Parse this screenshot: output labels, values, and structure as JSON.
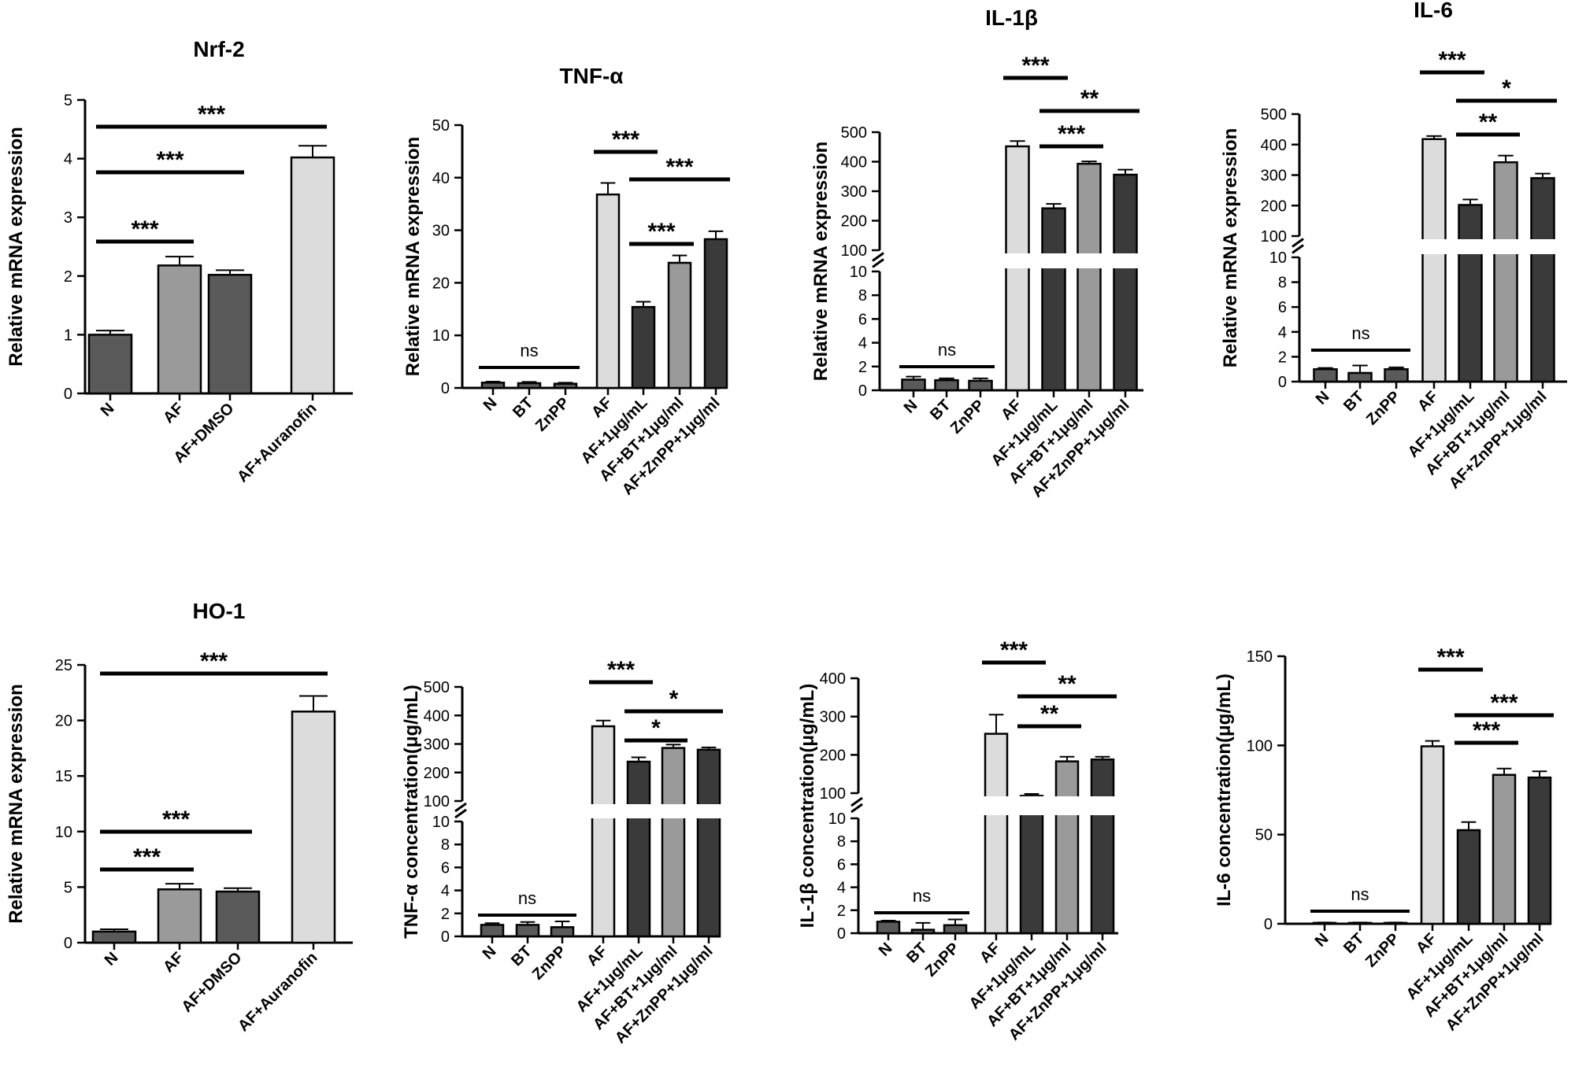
{
  "colors": {
    "dark": "#5a5a5a",
    "medium": "#9a9a9a",
    "light": "#dcdcdc",
    "black": "#3a3a3a",
    "axis": "#000000"
  },
  "chart_data": [
    {
      "type": "bar",
      "title": "Nrf-2",
      "ylabel": "Relative mRNA expression",
      "categories": [
        "N",
        "AF",
        "AF+DMSO",
        "AF+Auranofin"
      ],
      "values": [
        1.0,
        2.18,
        2.02,
        4.02
      ],
      "errors": [
        0.07,
        0.15,
        0.08,
        0.2
      ],
      "colors": [
        "dark",
        "medium",
        "dark",
        "light"
      ],
      "ylim": [
        0,
        5
      ],
      "yticks": [
        0,
        1,
        2,
        3,
        4,
        5
      ],
      "significance": [
        {
          "from": 0,
          "to": 1,
          "label": "***"
        },
        {
          "from": 0,
          "to": 2,
          "label": "***"
        },
        {
          "from": 0,
          "to": 3,
          "label": "***"
        }
      ]
    },
    {
      "type": "bar",
      "title": "TNF-α",
      "ylabel": "Relative mRNA expression",
      "categories": [
        "N",
        "BT",
        "ZnPP",
        "AF",
        "AF+1μg/mL",
        "AF+BT+1μg/ml",
        "AF+ZnPP+1μg/ml"
      ],
      "values": [
        1.0,
        0.9,
        0.8,
        36.8,
        15.4,
        23.8,
        28.3
      ],
      "errors": [
        0.2,
        0.25,
        0.2,
        2.2,
        1.0,
        1.4,
        1.5
      ],
      "colors": [
        "dark",
        "dark",
        "dark",
        "light",
        "black",
        "medium",
        "black"
      ],
      "ylim": [
        0,
        50
      ],
      "yticks": [
        0,
        10,
        20,
        30,
        40,
        50
      ],
      "significance": [
        {
          "from": 0,
          "to": 2,
          "label": "ns"
        },
        {
          "from": 3,
          "to": 4,
          "label": "***"
        },
        {
          "from": 4,
          "to": 5,
          "label": "***"
        },
        {
          "from": 4,
          "to": 6,
          "label": "***"
        }
      ]
    },
    {
      "type": "bar",
      "title": "IL-1β",
      "ylabel": "Relative mRNA expression",
      "categories": [
        "N",
        "BT",
        "ZnPP",
        "AF",
        "AF+1μg/mL",
        "AF+BT+1μg/ml",
        "AF+ZnPP+1μg/ml"
      ],
      "values": [
        0.9,
        0.85,
        0.8,
        452,
        242,
        393,
        356
      ],
      "errors": [
        0.25,
        0.15,
        0.2,
        18,
        15,
        8,
        17
      ],
      "colors": [
        "dark",
        "dark",
        "dark",
        "light",
        "black",
        "medium",
        "black"
      ],
      "broken_axis": {
        "lower": [
          0,
          10
        ],
        "upper": [
          100,
          500
        ]
      },
      "yticks_lower": [
        0,
        2,
        4,
        6,
        8,
        10
      ],
      "yticks_upper": [
        100,
        200,
        300,
        400,
        500
      ],
      "significance": [
        {
          "from": 0,
          "to": 2,
          "label": "ns"
        },
        {
          "from": 3,
          "to": 4,
          "label": "***"
        },
        {
          "from": 4,
          "to": 5,
          "label": "***"
        },
        {
          "from": 4,
          "to": 6,
          "label": "**"
        }
      ]
    },
    {
      "type": "bar",
      "title": "IL-6",
      "ylabel": "Relative mRNA expression",
      "categories": [
        "N",
        "BT",
        "ZnPP",
        "AF",
        "AF+1μg/mL",
        "AF+BT+1μg/ml",
        "AF+ZnPP+1μg/ml"
      ],
      "values": [
        1.0,
        0.7,
        1.0,
        418,
        202,
        342,
        290
      ],
      "errors": [
        0.1,
        0.6,
        0.15,
        10,
        18,
        22,
        15
      ],
      "colors": [
        "dark",
        "dark",
        "dark",
        "light",
        "black",
        "medium",
        "black"
      ],
      "broken_axis": {
        "lower": [
          0,
          10
        ],
        "upper": [
          100,
          500
        ]
      },
      "yticks_lower": [
        0,
        2,
        4,
        6,
        8,
        10
      ],
      "yticks_upper": [
        100,
        200,
        300,
        400,
        500
      ],
      "significance": [
        {
          "from": 0,
          "to": 2,
          "label": "ns"
        },
        {
          "from": 3,
          "to": 4,
          "label": "***"
        },
        {
          "from": 4,
          "to": 5,
          "label": "**"
        },
        {
          "from": 4,
          "to": 6,
          "label": "*"
        }
      ]
    },
    {
      "type": "bar",
      "title": "HO-1",
      "ylabel": "Relative mRNA expression",
      "categories": [
        "N",
        "AF",
        "AF+DMSO",
        "AF+Auranofin"
      ],
      "values": [
        1.0,
        4.8,
        4.6,
        20.8
      ],
      "errors": [
        0.2,
        0.5,
        0.3,
        1.4
      ],
      "colors": [
        "dark",
        "medium",
        "dark",
        "light"
      ],
      "ylim": [
        0,
        25
      ],
      "yticks": [
        0,
        5,
        10,
        15,
        20,
        25
      ],
      "significance": [
        {
          "from": 0,
          "to": 1,
          "label": "***"
        },
        {
          "from": 0,
          "to": 2,
          "label": "***"
        },
        {
          "from": 0,
          "to": 3,
          "label": "***"
        }
      ]
    },
    {
      "type": "bar",
      "title": "",
      "ylabel": "TNF-α concentration(μg/mL)",
      "categories": [
        "N",
        "BT",
        "ZnPP",
        "AF",
        "AF+1μg/mL",
        "AF+BT+1μg/ml",
        "AF+ZnPP+1μg/ml"
      ],
      "values": [
        1.0,
        1.0,
        0.8,
        362,
        238,
        286,
        280
      ],
      "errors": [
        0.15,
        0.25,
        0.5,
        20,
        15,
        12,
        8
      ],
      "colors": [
        "dark",
        "dark",
        "dark",
        "light",
        "black",
        "medium",
        "black"
      ],
      "broken_axis": {
        "lower": [
          0,
          10
        ],
        "upper": [
          100,
          500
        ]
      },
      "yticks_lower": [
        0,
        2,
        4,
        6,
        8,
        10
      ],
      "yticks_upper": [
        100,
        200,
        300,
        400,
        500
      ],
      "significance": [
        {
          "from": 0,
          "to": 2,
          "label": "ns"
        },
        {
          "from": 3,
          "to": 4,
          "label": "***"
        },
        {
          "from": 4,
          "to": 5,
          "label": "*"
        },
        {
          "from": 4,
          "to": 6,
          "label": "*"
        }
      ]
    },
    {
      "type": "bar",
      "title": "",
      "ylabel": "IL-1β concentration(μg/mL)",
      "categories": [
        "N",
        "BT",
        "ZnPP",
        "AF",
        "AF+1μg/mL",
        "AF+BT+1μg/ml",
        "AF+ZnPP+1μg/ml"
      ],
      "values": [
        1.0,
        0.3,
        0.7,
        255,
        93,
        183,
        188
      ],
      "errors": [
        0.1,
        0.6,
        0.5,
        50,
        5,
        12,
        7
      ],
      "colors": [
        "dark",
        "dark",
        "dark",
        "light",
        "black",
        "medium",
        "black"
      ],
      "broken_axis": {
        "lower": [
          0,
          10
        ],
        "upper": [
          100,
          400
        ]
      },
      "yticks_lower": [
        0,
        2,
        4,
        6,
        8,
        10
      ],
      "yticks_upper": [
        100,
        200,
        300,
        400
      ],
      "significance": [
        {
          "from": 0,
          "to": 2,
          "label": "ns"
        },
        {
          "from": 3,
          "to": 4,
          "label": "***"
        },
        {
          "from": 4,
          "to": 5,
          "label": "**"
        },
        {
          "from": 4,
          "to": 6,
          "label": "**"
        }
      ]
    },
    {
      "type": "bar",
      "title": "",
      "ylabel": "IL-6 concentration(μg/mL)",
      "categories": [
        "N",
        "BT",
        "ZnPP",
        "AF",
        "AF+1μg/mL",
        "AF+BT+1μg/ml",
        "AF+ZnPP+1μg/ml"
      ],
      "values": [
        0.5,
        0.5,
        0.5,
        99.5,
        52.5,
        83.5,
        82
      ],
      "errors": [
        0.2,
        0.2,
        0.2,
        3,
        4.5,
        3.5,
        3.5
      ],
      "colors": [
        "dark",
        "dark",
        "dark",
        "light",
        "black",
        "medium",
        "black"
      ],
      "ylim": [
        0,
        150
      ],
      "yticks": [
        0,
        50,
        100,
        150
      ],
      "significance": [
        {
          "from": 0,
          "to": 2,
          "label": "ns"
        },
        {
          "from": 3,
          "to": 4,
          "label": "***"
        },
        {
          "from": 4,
          "to": 5,
          "label": "***"
        },
        {
          "from": 4,
          "to": 6,
          "label": "***"
        }
      ]
    }
  ]
}
